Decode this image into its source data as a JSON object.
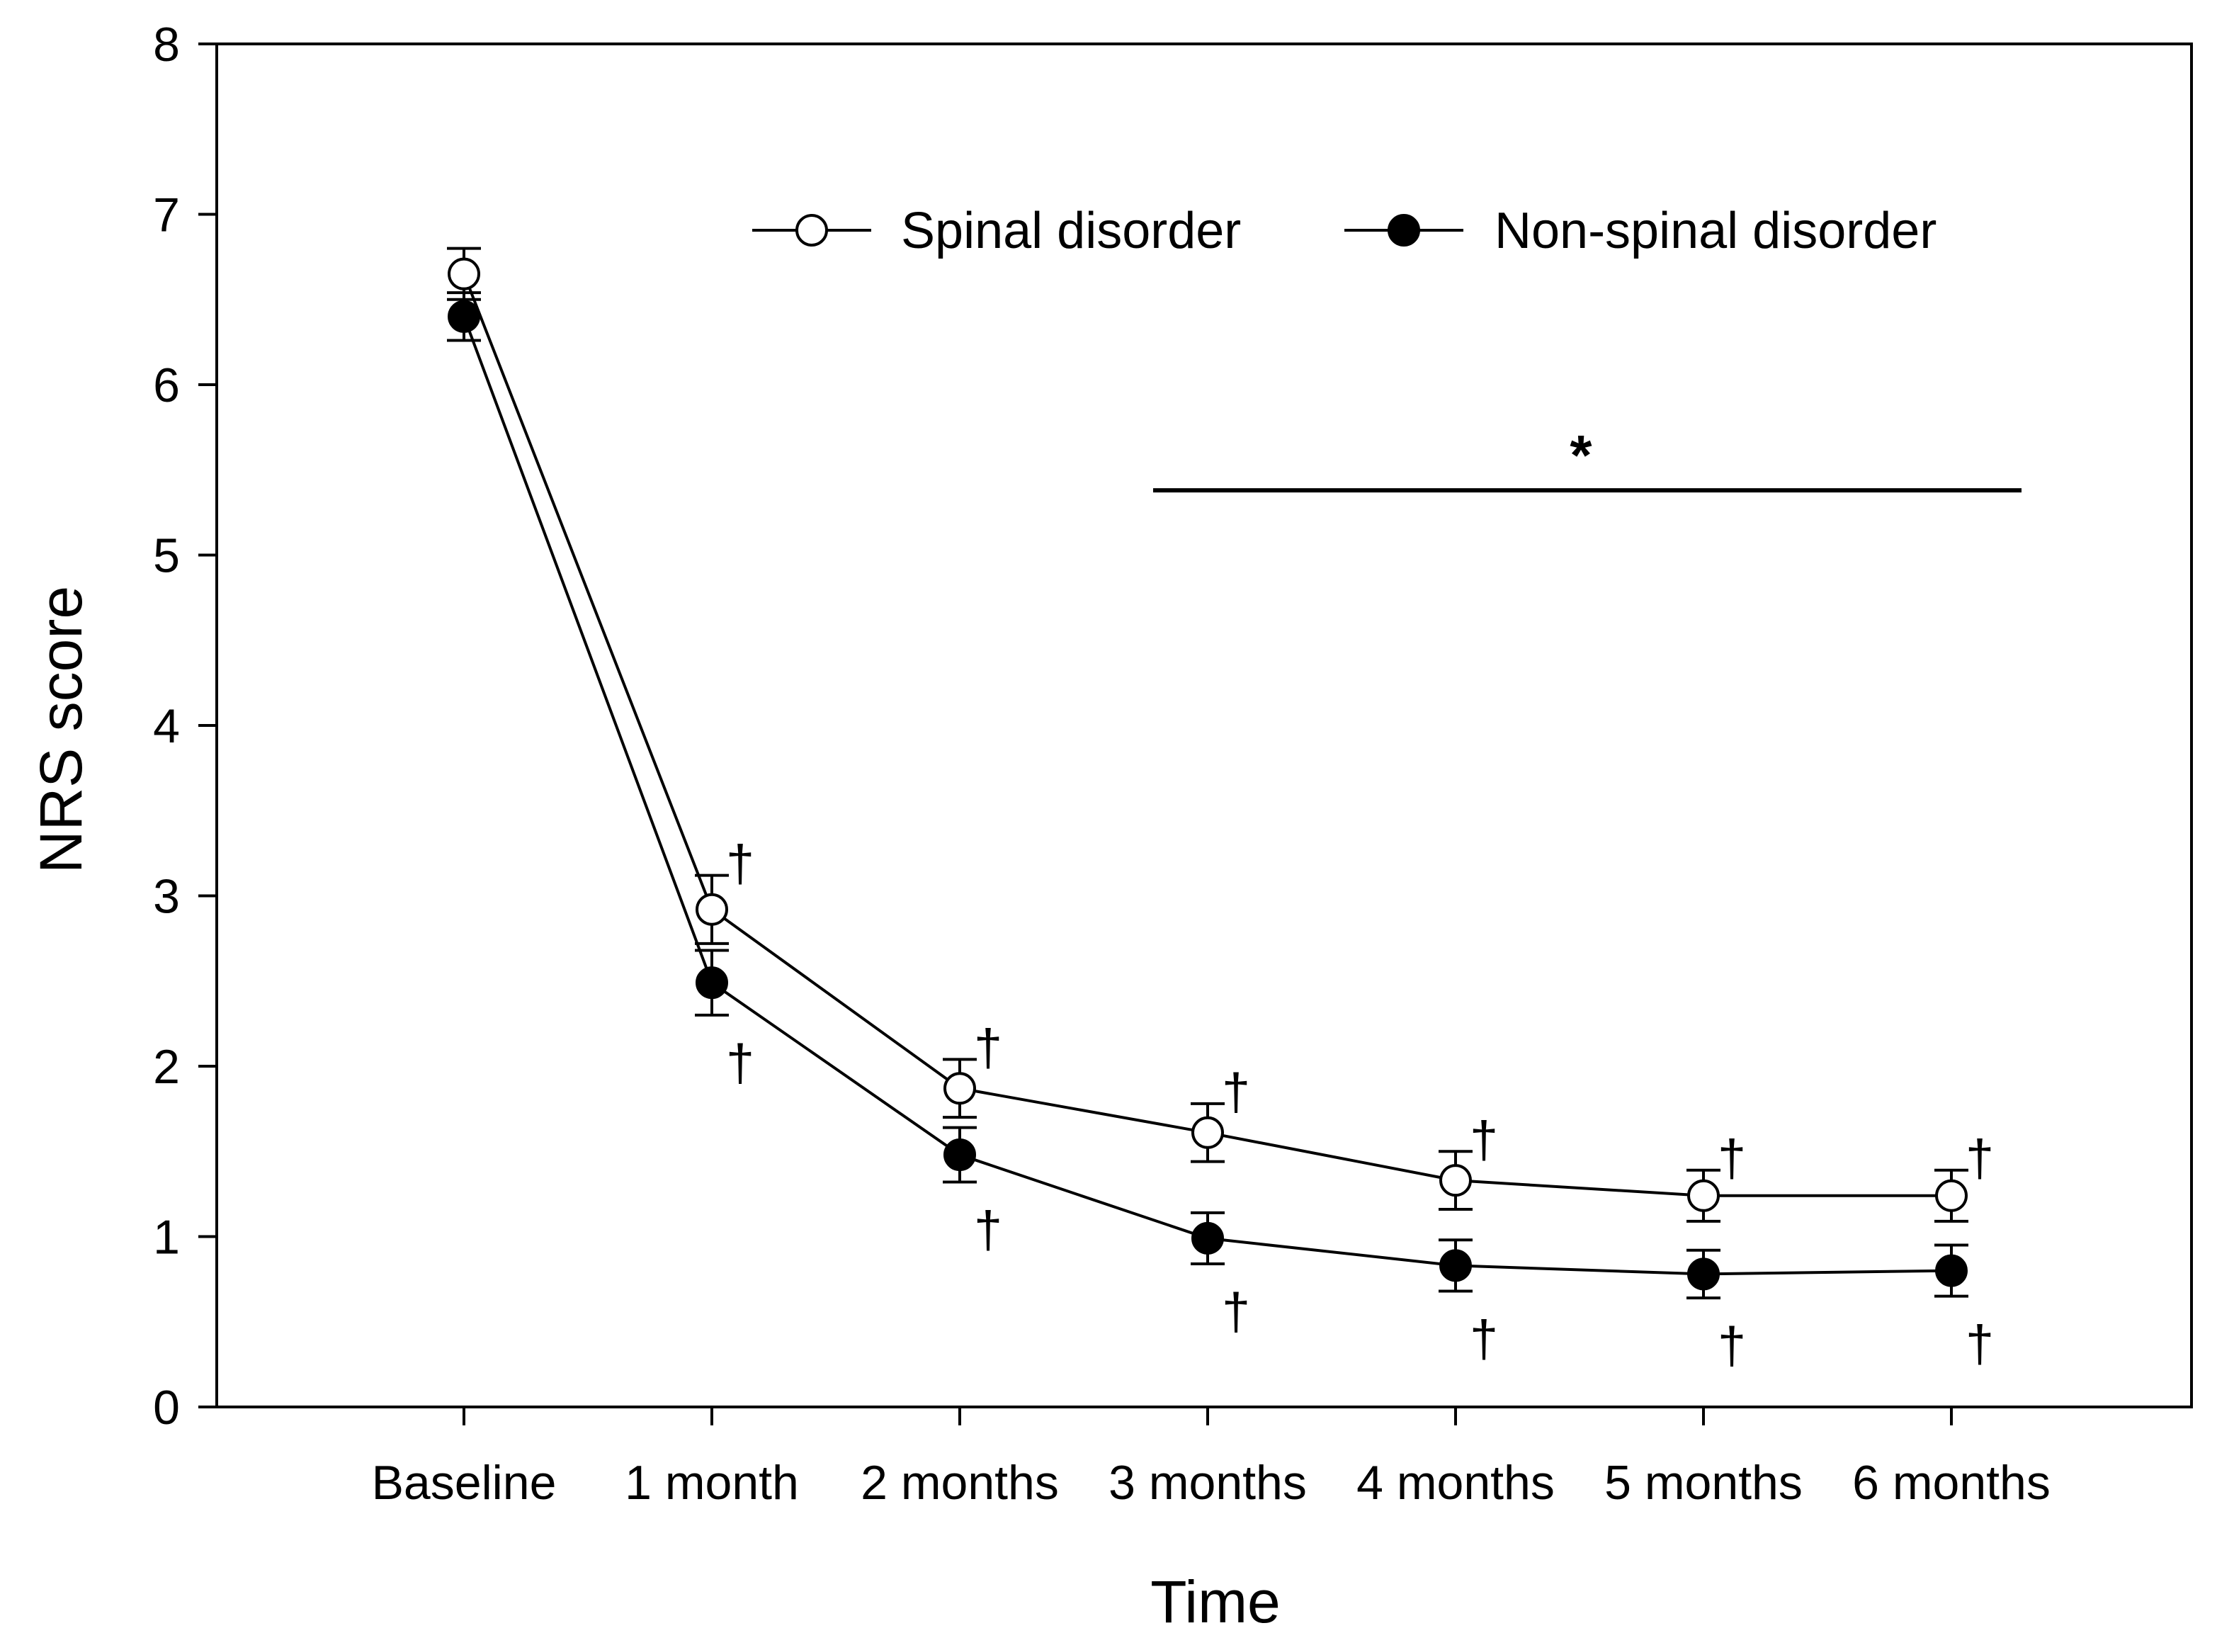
{
  "chart_data": {
    "type": "line",
    "title": "",
    "xlabel": "Time",
    "ylabel": "NRS score",
    "categories": [
      "Baseline",
      "1 month",
      "2 months",
      "3 months",
      "4 months",
      "5 months",
      "6 months"
    ],
    "ylim": [
      0,
      8
    ],
    "yticks": [
      "0",
      "1",
      "2",
      "3",
      "4",
      "5",
      "6",
      "7",
      "8"
    ],
    "grid": false,
    "legend_position": "top",
    "series": [
      {
        "name": "Spinal disorder",
        "marker": "open-circle",
        "values": [
          6.65,
          2.92,
          1.87,
          1.61,
          1.33,
          1.24,
          1.24
        ],
        "error": [
          0.15,
          0.2,
          0.17,
          0.17,
          0.17,
          0.15,
          0.15
        ],
        "dagger_labels": [
          "",
          "†",
          "†",
          "†",
          "†",
          "†",
          "†"
        ]
      },
      {
        "name": "Non-spinal disorder",
        "marker": "filled-circle",
        "values": [
          6.4,
          2.49,
          1.48,
          0.99,
          0.83,
          0.78,
          0.8
        ],
        "error": [
          0.14,
          0.19,
          0.16,
          0.15,
          0.15,
          0.14,
          0.15
        ],
        "dagger_labels": [
          "",
          "†",
          "†",
          "†",
          "†",
          "†",
          "†"
        ]
      }
    ],
    "significance": {
      "symbol": "*",
      "from_category": "3 months",
      "to_category": "6 months",
      "y_value": 5.38
    }
  }
}
